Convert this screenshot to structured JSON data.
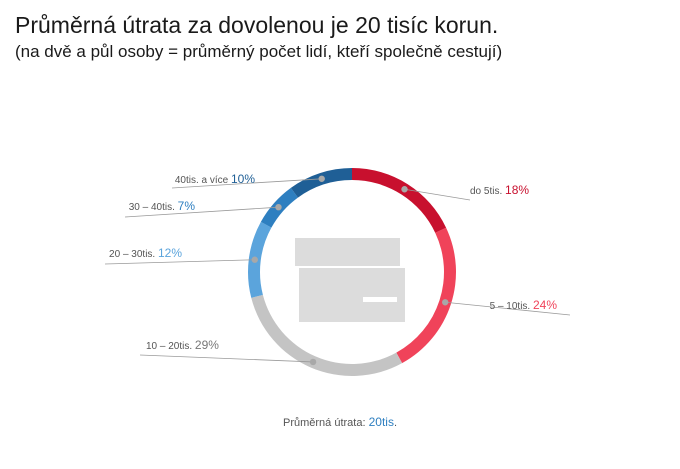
{
  "title": "Průměrná útrata za dovolenou je 20 tisíc korun.",
  "subtitle": "(na dvě a půl osoby = průměrný počet lidí, kteří společně cestují)",
  "footer": {
    "label": "Průměrná útrata:",
    "value": "20tis",
    "suffix": "."
  },
  "chart_data": {
    "type": "pie",
    "variant": "donut",
    "unit": "%",
    "slices": [
      {
        "label": "do 5tis.",
        "value": 18,
        "display": "18%",
        "color": "#c8102e"
      },
      {
        "label": "5 – 10tis.",
        "value": 24,
        "display": "24%",
        "color": "#f0435a"
      },
      {
        "label": "10 – 20tis.",
        "value": 29,
        "display": "29%",
        "color": "#c4c4c4"
      },
      {
        "label": "20 – 30tis.",
        "value": 12,
        "display": "12%",
        "color": "#5ba4dc"
      },
      {
        "label": "30 – 40tis.",
        "value": 7,
        "display": "7%",
        "color": "#2e7fc0"
      },
      {
        "label": "40tis. a více",
        "value": 10,
        "display": "10%",
        "color": "#1f5f96"
      }
    ],
    "center_icon": "credit-card-icon",
    "label_color": "#555555"
  }
}
